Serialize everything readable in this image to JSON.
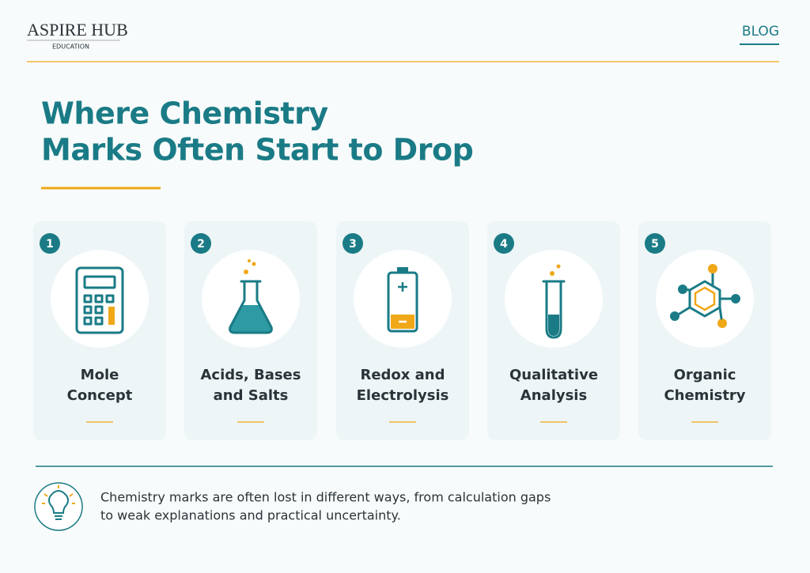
{
  "header": {
    "brand": "ASPIRE HUB",
    "tagline": "EDUCATION",
    "nav": "BLOG"
  },
  "title": {
    "lines": [
      "Where Chemistry",
      "Marks Often Start to Drop"
    ]
  },
  "cards": [
    {
      "number": "1",
      "label": [
        "Mole",
        "Concept"
      ]
    },
    {
      "number": "2",
      "label": [
        "Acids, Bases",
        "and Salts"
      ]
    },
    {
      "number": "3",
      "label": [
        "Redox and",
        "Electrolysis"
      ]
    },
    {
      "number": "4",
      "label": [
        "Qualitative",
        "Analysis"
      ]
    },
    {
      "number": "5",
      "label": [
        "Organic",
        "Chemistry"
      ]
    }
  ],
  "footer": {
    "lines": [
      "Chemistry marks are often lost in different ways, from calculation gaps",
      "to weak explanations and practical uncertainty."
    ]
  }
}
